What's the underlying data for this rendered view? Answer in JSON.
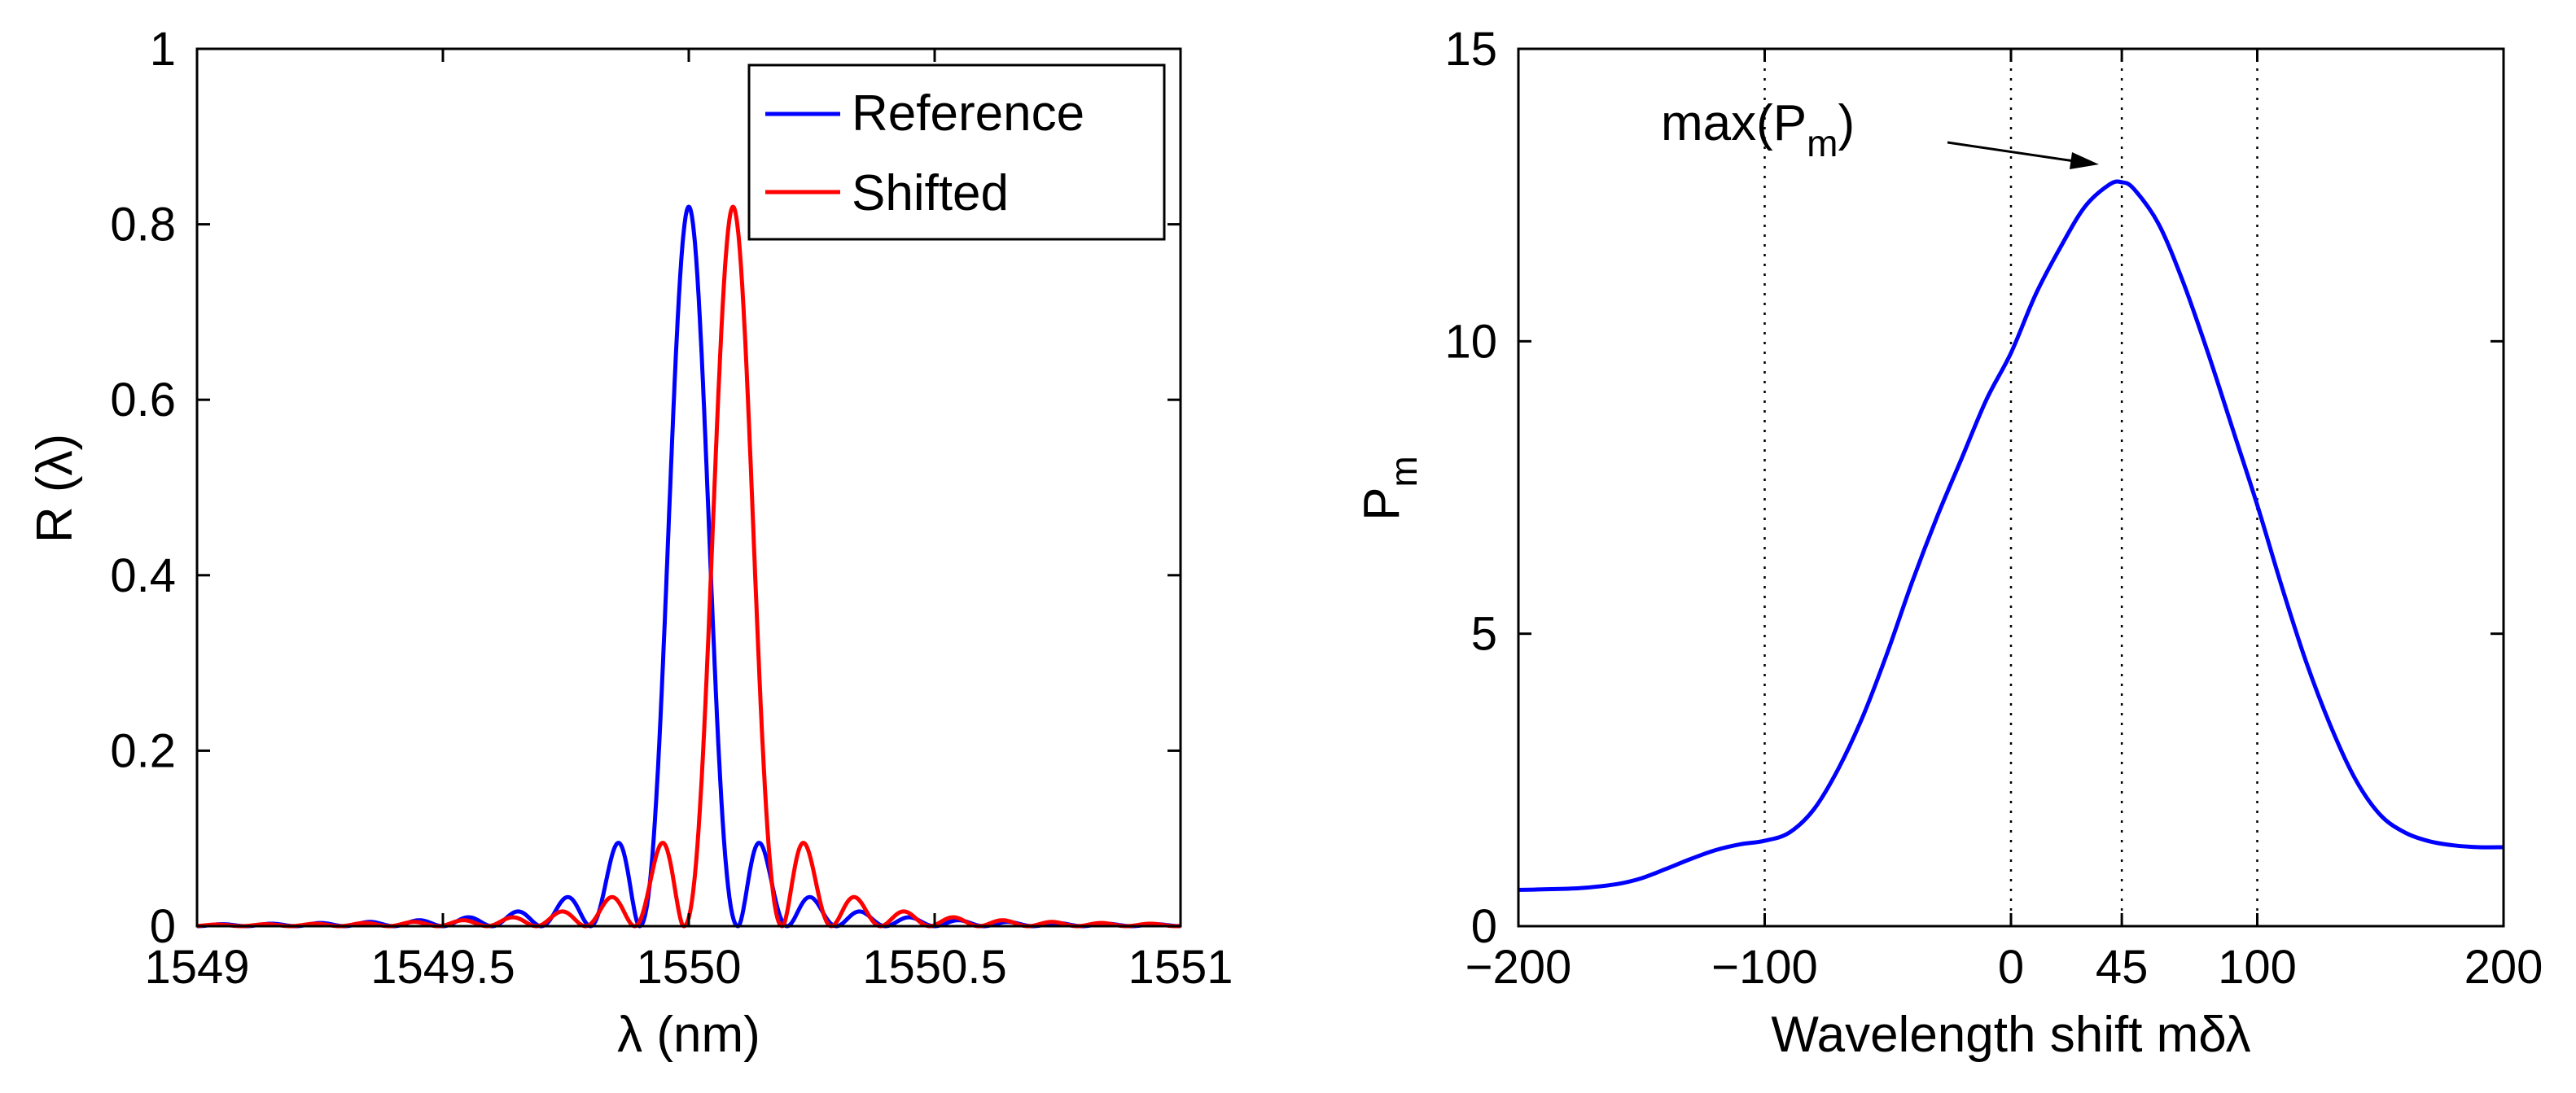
{
  "chart_data": [
    {
      "id": "left",
      "type": "line",
      "title": "",
      "xlabel": "λ (nm)",
      "ylabel": "R (λ)",
      "xlim": [
        1549,
        1551
      ],
      "ylim": [
        0,
        1
      ],
      "xticks": [
        1549,
        1549.5,
        1550,
        1550.5,
        1551
      ],
      "xtick_labels": [
        "1549",
        "1549.5",
        "1550",
        "1550.5",
        "1551"
      ],
      "yticks": [
        0,
        0.2,
        0.4,
        0.6,
        0.8,
        1
      ],
      "ytick_labels": [
        "0",
        "0.2",
        "0.4",
        "0.6",
        "0.8",
        "1"
      ],
      "grid": false,
      "legend": {
        "placement": "top-right",
        "entries": [
          "Reference",
          "Shifted"
        ]
      },
      "series": [
        {
          "name": "Reference",
          "color": "#0000ff",
          "center": 1550.0,
          "peak": 0.82,
          "mainlobe_halfwidth": 0.1,
          "sidelobe_first": 0.095
        },
        {
          "name": "Shifted",
          "color": "#ff0000",
          "center": 1550.09,
          "peak": 0.82,
          "mainlobe_halfwidth": 0.1,
          "sidelobe_first": 0.095
        }
      ]
    },
    {
      "id": "right",
      "type": "line",
      "title": "",
      "xlabel": "Wavelength shift mδλ",
      "ylabel_base": "P",
      "ylabel_sub": "m",
      "xlim": [
        -200,
        200
      ],
      "ylim": [
        0,
        15
      ],
      "xticks": [
        -200,
        -100,
        0,
        45,
        100,
        200
      ],
      "xtick_labels": [
        "−200",
        "−100",
        "0",
        "45",
        "100",
        "200"
      ],
      "yticks": [
        0,
        5,
        10,
        15
      ],
      "ytick_labels": [
        "0",
        "5",
        "10",
        "15"
      ],
      "vertical_lines": [
        -100,
        0,
        45,
        100
      ],
      "grid": false,
      "annotation": {
        "text_base": "max(P",
        "text_sub": "m",
        "text_end": ")",
        "points_to": [
          45,
          12.7
        ]
      },
      "series": [
        {
          "name": "P_m",
          "color": "#0000ff",
          "x": [
            -200,
            -190,
            -175,
            -160,
            -150,
            -140,
            -130,
            -120,
            -110,
            -100,
            -90,
            -80,
            -70,
            -60,
            -50,
            -40,
            -30,
            -20,
            -10,
            0,
            10,
            20,
            30,
            40,
            45,
            50,
            60,
            70,
            80,
            90,
            100,
            110,
            120,
            130,
            140,
            150,
            160,
            170,
            180,
            190,
            200
          ],
          "y": [
            0.62,
            0.63,
            0.65,
            0.72,
            0.82,
            0.98,
            1.15,
            1.3,
            1.4,
            1.46,
            1.6,
            2.0,
            2.7,
            3.6,
            4.7,
            5.9,
            7.0,
            8.0,
            9.0,
            9.8,
            10.8,
            11.6,
            12.3,
            12.68,
            12.72,
            12.6,
            12.0,
            11.0,
            9.8,
            8.5,
            7.2,
            5.8,
            4.5,
            3.4,
            2.5,
            1.9,
            1.6,
            1.45,
            1.38,
            1.35,
            1.35
          ]
        }
      ]
    }
  ]
}
